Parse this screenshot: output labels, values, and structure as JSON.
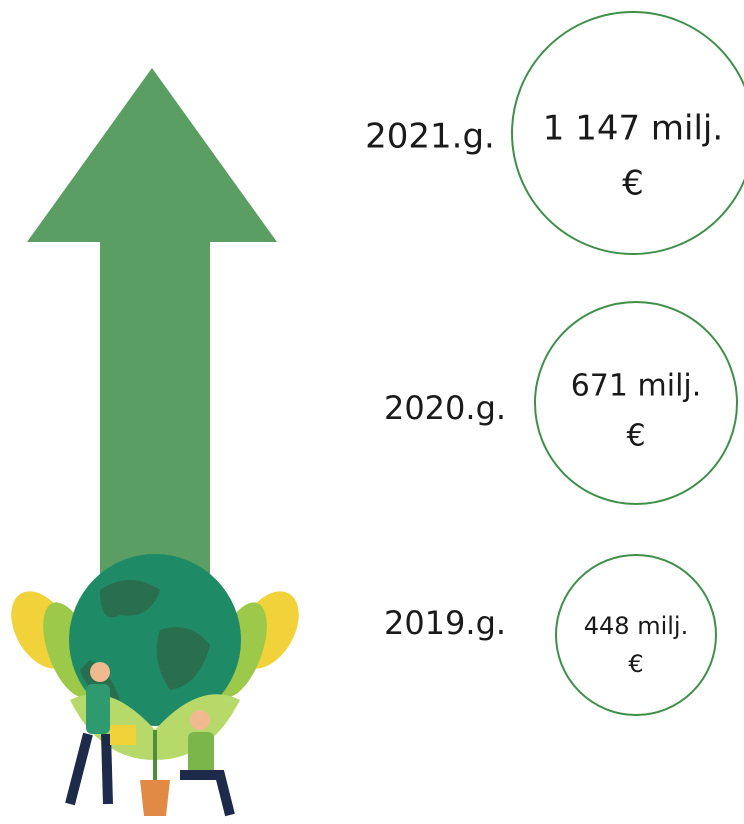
{
  "items": [
    {
      "year": "2021.g.",
      "amount_lines": [
        "1 147 milj.",
        "€"
      ]
    },
    {
      "year": "2020.g.",
      "amount_lines": [
        "671 milj.",
        "€"
      ]
    },
    {
      "year": "2019.g.",
      "amount_lines": [
        "448 milj.",
        "€"
      ]
    }
  ]
}
